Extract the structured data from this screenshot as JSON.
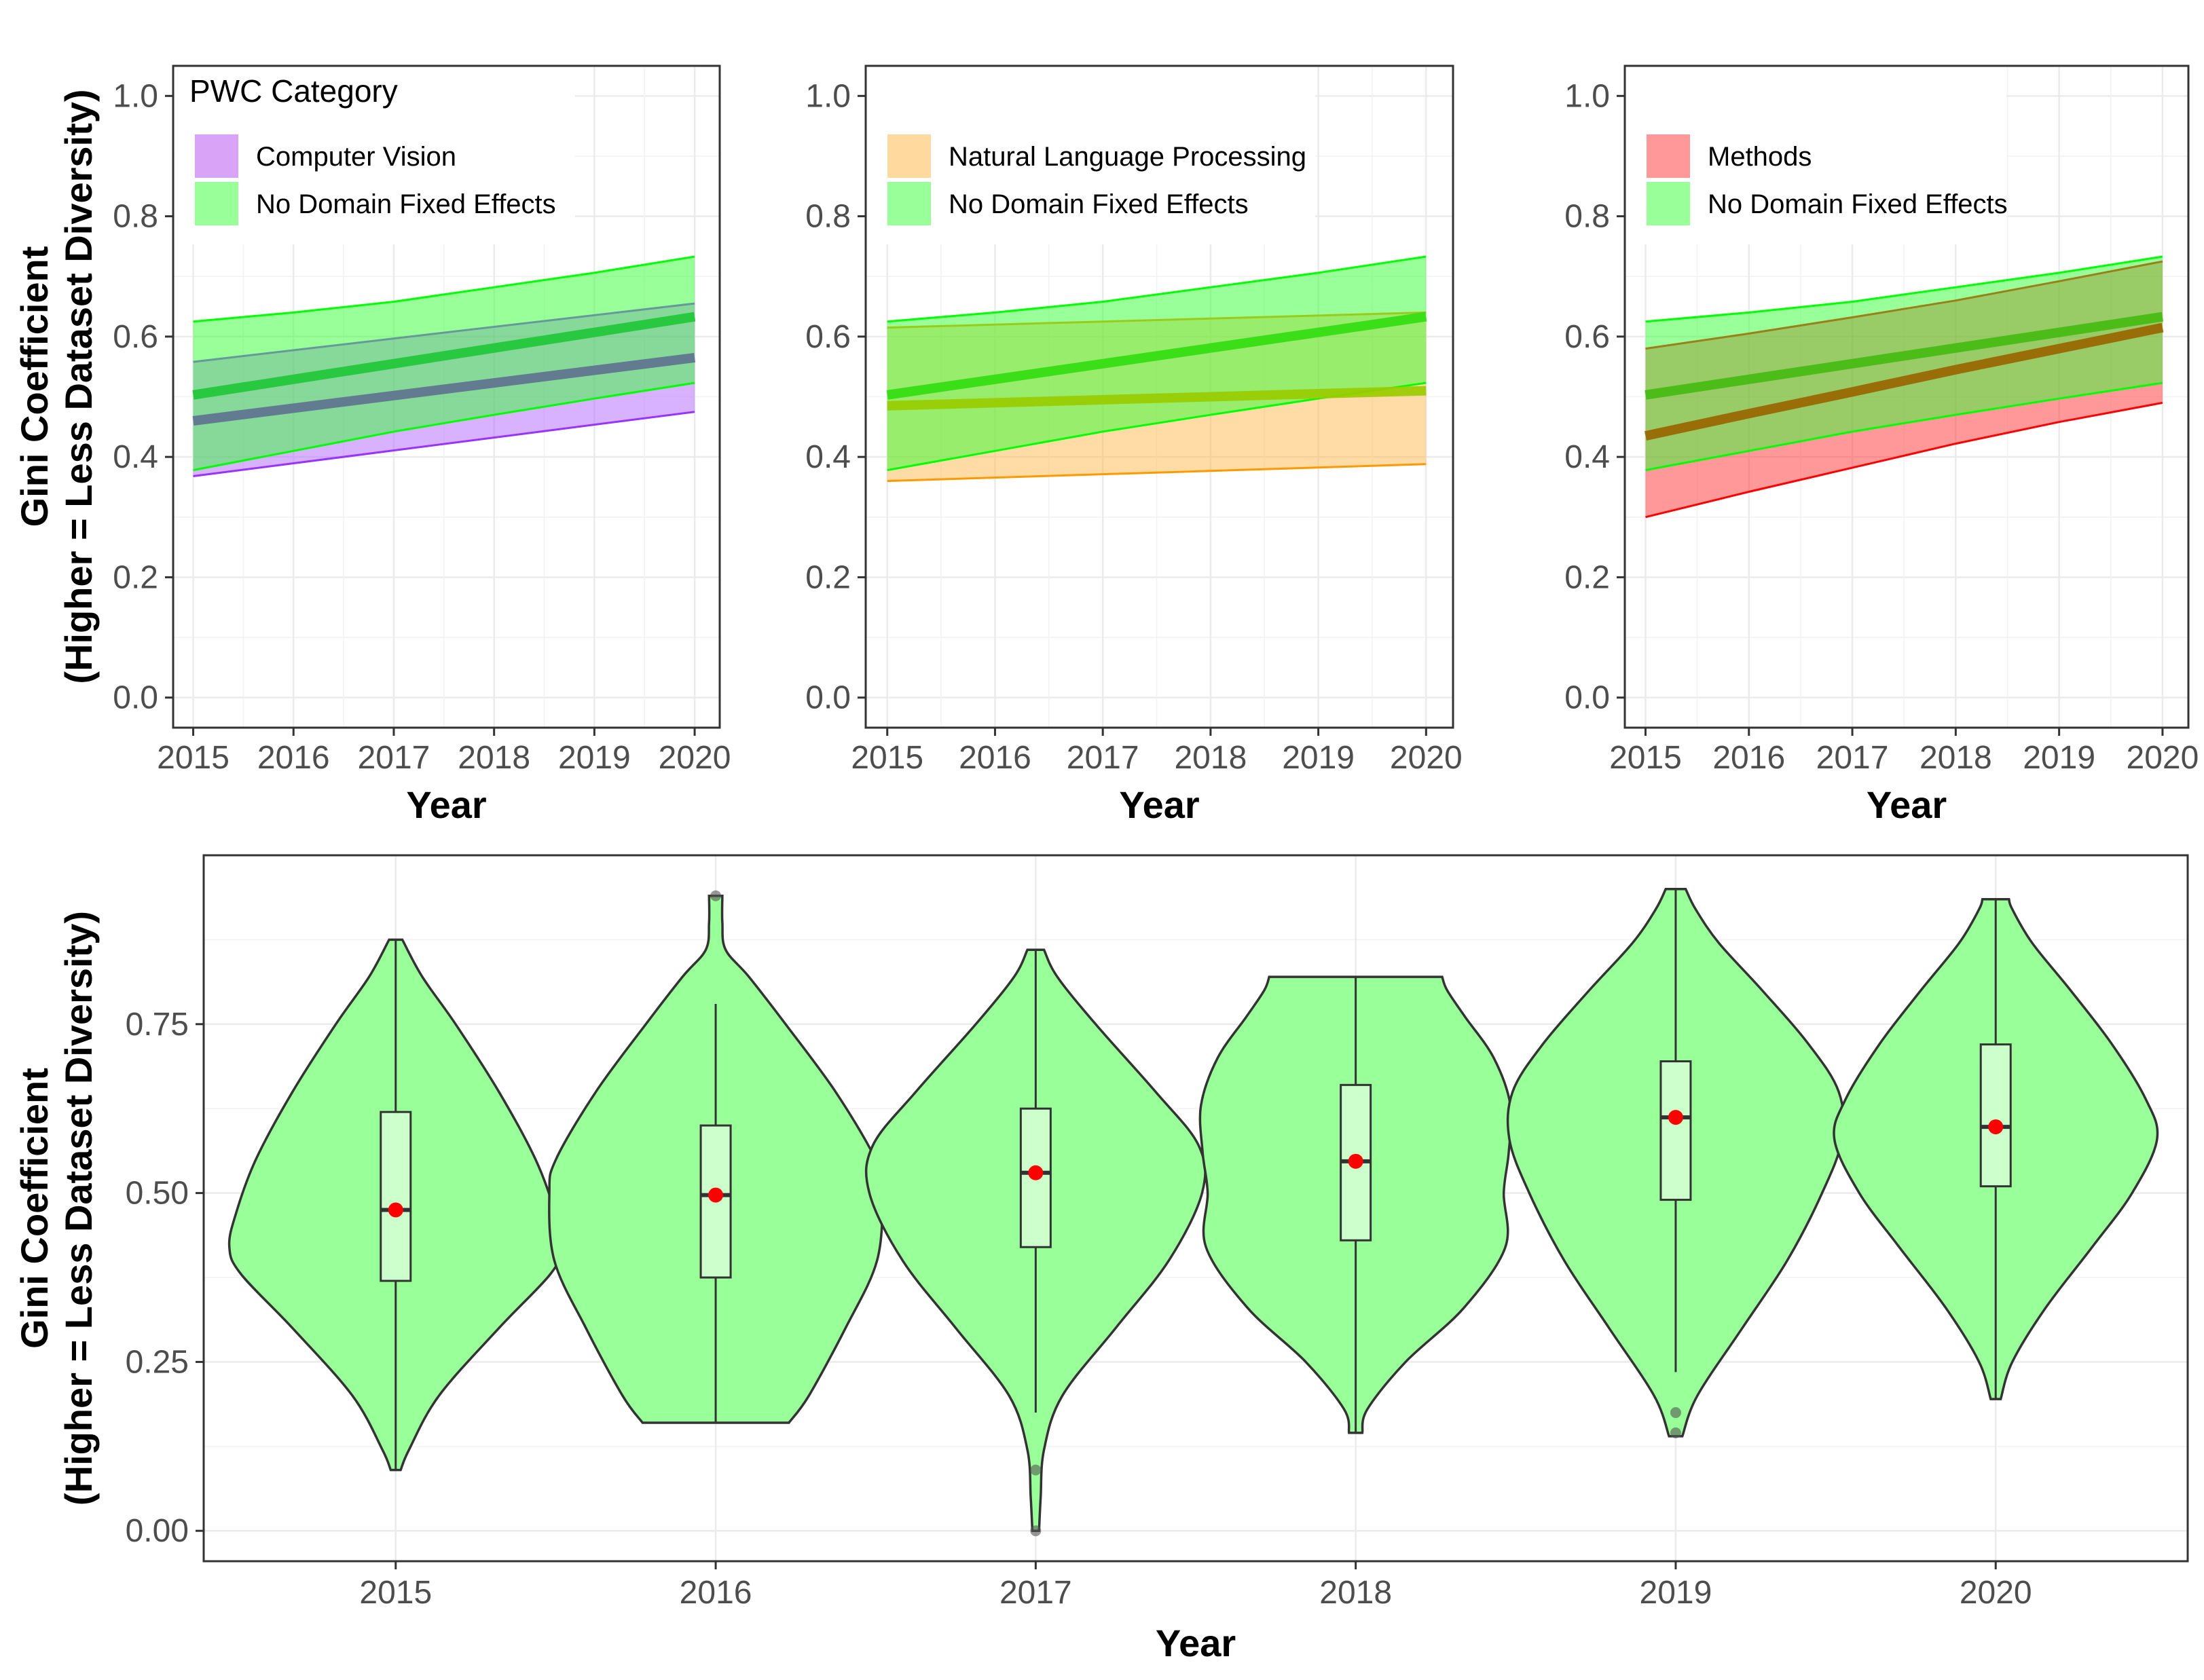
{
  "chart_data": [
    {
      "type": "area",
      "panel": "top-left",
      "xlabel": "Year",
      "ylabel": [
        "Gini Coefficient",
        "(Higher = Less Dataset Diversity)"
      ],
      "x_ticks": [
        2015,
        2016,
        2017,
        2018,
        2019,
        2020
      ],
      "y_ticks": [
        "0.0",
        "0.2",
        "0.4",
        "0.6",
        "0.8",
        "1.0"
      ],
      "xlim": [
        2014.8,
        2020.25
      ],
      "ylim": [
        -0.05,
        1.05
      ],
      "grid": true,
      "legend": {
        "title": "PWC Category",
        "placement": "top-left",
        "entries": [
          {
            "label": "Computer Vision",
            "color": "#d9a4f7"
          },
          {
            "label": "No Domain Fixed Effects",
            "color": "#99ff99"
          }
        ]
      },
      "series": [
        {
          "name": "Computer Vision",
          "color": "#9933ff",
          "fill": "#b266ff",
          "line": "#5f7390",
          "x": [
            2015,
            2020
          ],
          "mean": [
            0.46,
            0.565
          ],
          "lower": [
            0.368,
            0.475
          ],
          "upper": [
            0.558,
            0.655
          ]
        },
        {
          "name": "No Domain Fixed Effects",
          "color": "#00ff00",
          "fill": "#33ff33",
          "line": "#22c73a",
          "x": [
            2015,
            2016,
            2017,
            2018,
            2019,
            2020
          ],
          "mean": [
            0.503,
            0.529,
            0.555,
            0.581,
            0.607,
            0.633
          ],
          "lower": [
            0.378,
            0.41,
            0.442,
            0.47,
            0.497,
            0.523
          ],
          "upper": [
            0.625,
            0.64,
            0.658,
            0.682,
            0.706,
            0.733
          ]
        }
      ]
    },
    {
      "type": "area",
      "panel": "top-middle",
      "xlabel": "Year",
      "x_ticks": [
        2015,
        2016,
        2017,
        2018,
        2019,
        2020
      ],
      "y_ticks": [
        "0.0",
        "0.2",
        "0.4",
        "0.6",
        "0.8",
        "1.0"
      ],
      "xlim": [
        2014.8,
        2020.25
      ],
      "ylim": [
        -0.05,
        1.05
      ],
      "grid": true,
      "legend": {
        "placement": "top-left",
        "entries": [
          {
            "label": "Natural Language Processing",
            "color": "#ffd99e"
          },
          {
            "label": "No Domain Fixed Effects",
            "color": "#99ff99"
          }
        ]
      },
      "series": [
        {
          "name": "Natural Language Processing",
          "color": "#ff9900",
          "fill": "#ffb84d",
          "line": "#99cc00",
          "x": [
            2015,
            2020
          ],
          "mean": [
            0.485,
            0.51
          ],
          "lower": [
            0.36,
            0.388
          ],
          "upper": [
            0.615,
            0.64
          ]
        },
        {
          "name": "No Domain Fixed Effects",
          "color": "#00ff00",
          "fill": "#33ff33",
          "line": "#33dd11",
          "x": [
            2015,
            2016,
            2017,
            2018,
            2019,
            2020
          ],
          "mean": [
            0.503,
            0.529,
            0.555,
            0.581,
            0.607,
            0.633
          ],
          "lower": [
            0.378,
            0.41,
            0.442,
            0.47,
            0.497,
            0.523
          ],
          "upper": [
            0.625,
            0.64,
            0.658,
            0.682,
            0.706,
            0.733
          ]
        }
      ]
    },
    {
      "type": "area",
      "panel": "top-right",
      "xlabel": "Year",
      "x_ticks": [
        2015,
        2016,
        2017,
        2018,
        2019,
        2020
      ],
      "y_ticks": [
        "0.0",
        "0.2",
        "0.4",
        "0.6",
        "0.8",
        "1.0"
      ],
      "xlim": [
        2014.8,
        2020.25
      ],
      "ylim": [
        -0.05,
        1.05
      ],
      "grid": true,
      "legend": {
        "placement": "top-left",
        "entries": [
          {
            "label": "Methods",
            "color": "#ff9999"
          },
          {
            "label": "No Domain Fixed Effects",
            "color": "#99ff99"
          }
        ]
      },
      "series": [
        {
          "name": "Methods",
          "color": "#ff0000",
          "fill": "#ff3333",
          "line": "#996600",
          "x": [
            2015,
            2016,
            2017,
            2018,
            2019,
            2020
          ],
          "mean": [
            0.435,
            0.472,
            0.508,
            0.545,
            0.58,
            0.615
          ],
          "lower": [
            0.3,
            0.342,
            0.382,
            0.422,
            0.458,
            0.49
          ],
          "upper": [
            0.58,
            0.605,
            0.632,
            0.66,
            0.692,
            0.725
          ]
        },
        {
          "name": "No Domain Fixed Effects",
          "color": "#00ff00",
          "fill": "#33ff33",
          "line": "#44bb11",
          "x": [
            2015,
            2016,
            2017,
            2018,
            2019,
            2020
          ],
          "mean": [
            0.503,
            0.529,
            0.555,
            0.581,
            0.607,
            0.633
          ],
          "lower": [
            0.378,
            0.41,
            0.442,
            0.47,
            0.497,
            0.523
          ],
          "upper": [
            0.625,
            0.64,
            0.658,
            0.682,
            0.706,
            0.733
          ]
        }
      ]
    },
    {
      "type": "violin",
      "panel": "bottom",
      "xlabel": "Year",
      "ylabel": [
        "Gini Coefficient",
        "(Higher = Less Dataset Diversity)"
      ],
      "categories": [
        "2015",
        "2016",
        "2017",
        "2018",
        "2019",
        "2020"
      ],
      "y_ticks": [
        "0.00",
        "0.25",
        "0.50",
        "0.75"
      ],
      "ylim": [
        -0.045,
        1.0
      ],
      "grid": true,
      "fill": "#99ff99",
      "box_fill": "#ccffcc",
      "mean_color": "#ff0000",
      "violins": [
        {
          "year": "2015",
          "min": 0.09,
          "max": 0.875,
          "q1": 0.37,
          "median": 0.475,
          "q3": 0.62,
          "whisker_low": 0.09,
          "whisker_high": 0.875,
          "mean": 0.475,
          "outliers": [],
          "density": [
            [
              0.09,
              0.03
            ],
            [
              0.12,
              0.08
            ],
            [
              0.2,
              0.26
            ],
            [
              0.3,
              0.62
            ],
            [
              0.38,
              0.93
            ],
            [
              0.42,
              1.0
            ],
            [
              0.47,
              0.96
            ],
            [
              0.55,
              0.84
            ],
            [
              0.65,
              0.62
            ],
            [
              0.75,
              0.36
            ],
            [
              0.82,
              0.16
            ],
            [
              0.875,
              0.04
            ]
          ]
        },
        {
          "year": "2016",
          "min": 0.16,
          "max": 0.94,
          "q1": 0.375,
          "median": 0.497,
          "q3": 0.6,
          "whisker_low": 0.16,
          "whisker_high": 0.78,
          "mean": 0.497,
          "outliers": [
            0.94
          ],
          "density": [
            [
              0.16,
              0.44
            ],
            [
              0.2,
              0.56
            ],
            [
              0.3,
              0.78
            ],
            [
              0.4,
              0.97
            ],
            [
              0.5,
              1.0
            ],
            [
              0.55,
              0.96
            ],
            [
              0.65,
              0.72
            ],
            [
              0.75,
              0.42
            ],
            [
              0.82,
              0.2
            ],
            [
              0.86,
              0.06
            ],
            [
              0.9,
              0.04
            ],
            [
              0.94,
              0.04
            ]
          ]
        },
        {
          "year": "2017",
          "min": 0.0,
          "max": 0.86,
          "q1": 0.42,
          "median": 0.53,
          "q3": 0.625,
          "whisker_low": 0.175,
          "whisker_high": 0.86,
          "mean": 0.53,
          "outliers": [
            0.09,
            0.0
          ],
          "density": [
            [
              0.0,
              0.02
            ],
            [
              0.05,
              0.03
            ],
            [
              0.12,
              0.05
            ],
            [
              0.2,
              0.16
            ],
            [
              0.3,
              0.48
            ],
            [
              0.4,
              0.8
            ],
            [
              0.5,
              1.0
            ],
            [
              0.57,
              0.98
            ],
            [
              0.65,
              0.72
            ],
            [
              0.75,
              0.36
            ],
            [
              0.82,
              0.13
            ],
            [
              0.86,
              0.05
            ]
          ]
        },
        {
          "year": "2018",
          "min": 0.145,
          "max": 0.82,
          "q1": 0.43,
          "median": 0.547,
          "q3": 0.66,
          "whisker_low": 0.145,
          "whisker_high": 0.82,
          "mean": 0.547,
          "outliers": [],
          "density": [
            [
              0.145,
              0.04
            ],
            [
              0.18,
              0.07
            ],
            [
              0.25,
              0.3
            ],
            [
              0.33,
              0.65
            ],
            [
              0.42,
              0.9
            ],
            [
              0.5,
              0.89
            ],
            [
              0.56,
              0.92
            ],
            [
              0.63,
              0.93
            ],
            [
              0.7,
              0.83
            ],
            [
              0.76,
              0.66
            ],
            [
              0.8,
              0.55
            ],
            [
              0.82,
              0.52
            ]
          ]
        },
        {
          "year": "2019",
          "min": 0.14,
          "max": 0.95,
          "q1": 0.49,
          "median": 0.612,
          "q3": 0.695,
          "whisker_low": 0.235,
          "whisker_high": 0.95,
          "mean": 0.612,
          "outliers": [
            0.175,
            0.145
          ],
          "density": [
            [
              0.14,
              0.04
            ],
            [
              0.2,
              0.13
            ],
            [
              0.3,
              0.4
            ],
            [
              0.4,
              0.67
            ],
            [
              0.5,
              0.88
            ],
            [
              0.58,
              1.0
            ],
            [
              0.65,
              0.98
            ],
            [
              0.72,
              0.8
            ],
            [
              0.8,
              0.52
            ],
            [
              0.87,
              0.26
            ],
            [
              0.92,
              0.12
            ],
            [
              0.95,
              0.06
            ]
          ]
        },
        {
          "year": "2020",
          "min": 0.195,
          "max": 0.935,
          "q1": 0.51,
          "median": 0.598,
          "q3": 0.72,
          "whisker_low": 0.195,
          "whisker_high": 0.935,
          "mean": 0.598,
          "outliers": [],
          "density": [
            [
              0.195,
              0.03
            ],
            [
              0.25,
              0.1
            ],
            [
              0.33,
              0.3
            ],
            [
              0.42,
              0.58
            ],
            [
              0.5,
              0.82
            ],
            [
              0.58,
              0.97
            ],
            [
              0.64,
              0.9
            ],
            [
              0.72,
              0.7
            ],
            [
              0.8,
              0.45
            ],
            [
              0.87,
              0.22
            ],
            [
              0.92,
              0.1
            ],
            [
              0.935,
              0.08
            ]
          ]
        }
      ]
    }
  ]
}
